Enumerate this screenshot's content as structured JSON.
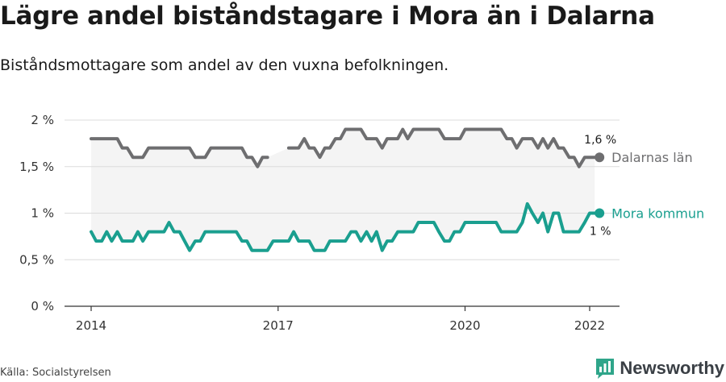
{
  "title": "Lägre andel biståndstagare i Mora än i Dalarna",
  "subtitle": "Biståndsmottagare som andel av den vuxna befolkningen.",
  "source": "Källa: Socialstyrelsen",
  "brand": "Newsworthy",
  "colors": {
    "dalarna": "#6e6e70",
    "mora": "#1a9f8f",
    "band": "#f4f4f4",
    "grid": "#dcdcdc",
    "axis": "#333333",
    "brand_icon": "#2fa58a"
  },
  "chart_data": {
    "type": "line",
    "title": "Lägre andel biståndstagare i Mora än i Dalarna",
    "subtitle": "Biståndsmottagare som andel av den vuxna befolkningen.",
    "xlabel": "",
    "ylabel": "",
    "x_range": [
      2013.8,
      2022.5
    ],
    "ylim": [
      0,
      2
    ],
    "y_ticks": [
      0,
      0.5,
      1,
      1.5,
      2
    ],
    "y_tick_labels": [
      "0 %",
      "0,5 %",
      "1 %",
      "1,5 %",
      "2 %"
    ],
    "x_ticks": [
      2014,
      2017,
      2020,
      2022
    ],
    "x_tick_labels": [
      "2014",
      "2017",
      "2020",
      "2022"
    ],
    "grid": true,
    "series": [
      {
        "name": "Dalarnas län",
        "color": "#6e6e70",
        "end_value_label": "1,6 %",
        "points": [
          [
            2014.0,
            1.8
          ],
          [
            2014.08,
            1.8
          ],
          [
            2014.17,
            1.8
          ],
          [
            2014.25,
            1.8
          ],
          [
            2014.33,
            1.8
          ],
          [
            2014.42,
            1.8
          ],
          [
            2014.5,
            1.7
          ],
          [
            2014.58,
            1.7
          ],
          [
            2014.67,
            1.6
          ],
          [
            2014.75,
            1.6
          ],
          [
            2014.83,
            1.6
          ],
          [
            2014.92,
            1.7
          ],
          [
            2015.0,
            1.7
          ],
          [
            2015.08,
            1.7
          ],
          [
            2015.17,
            1.7
          ],
          [
            2015.25,
            1.7
          ],
          [
            2015.33,
            1.7
          ],
          [
            2015.42,
            1.7
          ],
          [
            2015.5,
            1.7
          ],
          [
            2015.58,
            1.7
          ],
          [
            2015.67,
            1.6
          ],
          [
            2015.75,
            1.6
          ],
          [
            2015.83,
            1.6
          ],
          [
            2015.92,
            1.7
          ],
          [
            2016.0,
            1.7
          ],
          [
            2016.08,
            1.7
          ],
          [
            2016.17,
            1.7
          ],
          [
            2016.25,
            1.7
          ],
          [
            2016.33,
            1.7
          ],
          [
            2016.42,
            1.7
          ],
          [
            2016.5,
            1.6
          ],
          [
            2016.58,
            1.6
          ],
          [
            2016.67,
            1.5
          ],
          [
            2016.75,
            1.6
          ],
          [
            2016.83,
            1.6
          ],
          null,
          [
            2017.17,
            1.7
          ],
          [
            2017.25,
            1.7
          ],
          [
            2017.33,
            1.7
          ],
          [
            2017.42,
            1.8
          ],
          [
            2017.5,
            1.7
          ],
          [
            2017.58,
            1.7
          ],
          [
            2017.67,
            1.6
          ],
          [
            2017.75,
            1.7
          ],
          [
            2017.83,
            1.7
          ],
          [
            2017.92,
            1.8
          ],
          [
            2018.0,
            1.8
          ],
          [
            2018.08,
            1.9
          ],
          [
            2018.17,
            1.9
          ],
          [
            2018.25,
            1.9
          ],
          [
            2018.33,
            1.9
          ],
          [
            2018.42,
            1.8
          ],
          [
            2018.5,
            1.8
          ],
          [
            2018.58,
            1.8
          ],
          [
            2018.67,
            1.7
          ],
          [
            2018.75,
            1.8
          ],
          [
            2018.83,
            1.8
          ],
          [
            2018.92,
            1.8
          ],
          [
            2019.0,
            1.9
          ],
          [
            2019.08,
            1.8
          ],
          [
            2019.17,
            1.9
          ],
          [
            2019.25,
            1.9
          ],
          [
            2019.33,
            1.9
          ],
          [
            2019.42,
            1.9
          ],
          [
            2019.5,
            1.9
          ],
          [
            2019.58,
            1.9
          ],
          [
            2019.67,
            1.8
          ],
          [
            2019.75,
            1.8
          ],
          [
            2019.83,
            1.8
          ],
          [
            2019.92,
            1.8
          ],
          [
            2020.0,
            1.9
          ],
          [
            2020.08,
            1.9
          ],
          [
            2020.17,
            1.9
          ],
          [
            2020.25,
            1.9
          ],
          [
            2020.33,
            1.9
          ],
          [
            2020.42,
            1.9
          ],
          [
            2020.5,
            1.9
          ],
          [
            2020.58,
            1.9
          ],
          [
            2020.67,
            1.8
          ],
          [
            2020.75,
            1.8
          ],
          [
            2020.83,
            1.7
          ],
          [
            2020.92,
            1.8
          ],
          [
            2021.0,
            1.8
          ],
          [
            2021.08,
            1.8
          ],
          [
            2021.17,
            1.7
          ],
          [
            2021.25,
            1.8
          ],
          [
            2021.33,
            1.7
          ],
          [
            2021.42,
            1.8
          ],
          [
            2021.5,
            1.7
          ],
          [
            2021.58,
            1.7
          ],
          [
            2021.67,
            1.6
          ],
          [
            2021.75,
            1.6
          ],
          [
            2021.83,
            1.5
          ],
          [
            2021.92,
            1.6
          ],
          [
            2022.0,
            1.6
          ],
          [
            2022.08,
            1.6
          ]
        ]
      },
      {
        "name": "Mora kommun",
        "color": "#1a9f8f",
        "end_value_label": "1 %",
        "points": [
          [
            2014.0,
            0.8
          ],
          [
            2014.08,
            0.7
          ],
          [
            2014.17,
            0.7
          ],
          [
            2014.25,
            0.8
          ],
          [
            2014.33,
            0.7
          ],
          [
            2014.42,
            0.8
          ],
          [
            2014.5,
            0.7
          ],
          [
            2014.58,
            0.7
          ],
          [
            2014.67,
            0.7
          ],
          [
            2014.75,
            0.8
          ],
          [
            2014.83,
            0.7
          ],
          [
            2014.92,
            0.8
          ],
          [
            2015.0,
            0.8
          ],
          [
            2015.08,
            0.8
          ],
          [
            2015.17,
            0.8
          ],
          [
            2015.25,
            0.9
          ],
          [
            2015.33,
            0.8
          ],
          [
            2015.42,
            0.8
          ],
          [
            2015.5,
            0.7
          ],
          [
            2015.58,
            0.6
          ],
          [
            2015.67,
            0.7
          ],
          [
            2015.75,
            0.7
          ],
          [
            2015.83,
            0.8
          ],
          [
            2015.92,
            0.8
          ],
          [
            2016.0,
            0.8
          ],
          [
            2016.08,
            0.8
          ],
          [
            2016.17,
            0.8
          ],
          [
            2016.25,
            0.8
          ],
          [
            2016.33,
            0.8
          ],
          [
            2016.42,
            0.7
          ],
          [
            2016.5,
            0.7
          ],
          [
            2016.58,
            0.6
          ],
          [
            2016.67,
            0.6
          ],
          [
            2016.75,
            0.6
          ],
          [
            2016.83,
            0.6
          ],
          [
            2016.92,
            0.7
          ],
          [
            2017.0,
            0.7
          ],
          [
            2017.08,
            0.7
          ],
          [
            2017.17,
            0.7
          ],
          [
            2017.25,
            0.8
          ],
          [
            2017.33,
            0.7
          ],
          [
            2017.42,
            0.7
          ],
          [
            2017.5,
            0.7
          ],
          [
            2017.58,
            0.6
          ],
          [
            2017.67,
            0.6
          ],
          [
            2017.75,
            0.6
          ],
          [
            2017.83,
            0.7
          ],
          [
            2017.92,
            0.7
          ],
          [
            2018.0,
            0.7
          ],
          [
            2018.08,
            0.7
          ],
          [
            2018.17,
            0.8
          ],
          [
            2018.25,
            0.8
          ],
          [
            2018.33,
            0.7
          ],
          [
            2018.42,
            0.8
          ],
          [
            2018.5,
            0.7
          ],
          [
            2018.58,
            0.8
          ],
          [
            2018.67,
            0.6
          ],
          [
            2018.75,
            0.7
          ],
          [
            2018.83,
            0.7
          ],
          [
            2018.92,
            0.8
          ],
          [
            2019.0,
            0.8
          ],
          [
            2019.08,
            0.8
          ],
          [
            2019.17,
            0.8
          ],
          [
            2019.25,
            0.9
          ],
          [
            2019.33,
            0.9
          ],
          [
            2019.42,
            0.9
          ],
          [
            2019.5,
            0.9
          ],
          [
            2019.58,
            0.8
          ],
          [
            2019.67,
            0.7
          ],
          [
            2019.75,
            0.7
          ],
          [
            2019.83,
            0.8
          ],
          [
            2019.92,
            0.8
          ],
          [
            2020.0,
            0.9
          ],
          [
            2020.08,
            0.9
          ],
          [
            2020.17,
            0.9
          ],
          [
            2020.25,
            0.9
          ],
          [
            2020.33,
            0.9
          ],
          [
            2020.42,
            0.9
          ],
          [
            2020.5,
            0.9
          ],
          [
            2020.58,
            0.8
          ],
          [
            2020.67,
            0.8
          ],
          [
            2020.75,
            0.8
          ],
          [
            2020.83,
            0.8
          ],
          [
            2020.92,
            0.9
          ],
          [
            2021.0,
            1.1
          ],
          [
            2021.08,
            1.0
          ],
          [
            2021.17,
            0.9
          ],
          [
            2021.25,
            1.0
          ],
          [
            2021.33,
            0.8
          ],
          [
            2021.42,
            1.0
          ],
          [
            2021.5,
            1.0
          ],
          [
            2021.58,
            0.8
          ],
          [
            2021.67,
            0.8
          ],
          [
            2021.75,
            0.8
          ],
          [
            2021.83,
            0.8
          ],
          [
            2021.92,
            0.9
          ],
          [
            2022.0,
            1.0
          ],
          [
            2022.08,
            1.0
          ]
        ]
      }
    ]
  }
}
